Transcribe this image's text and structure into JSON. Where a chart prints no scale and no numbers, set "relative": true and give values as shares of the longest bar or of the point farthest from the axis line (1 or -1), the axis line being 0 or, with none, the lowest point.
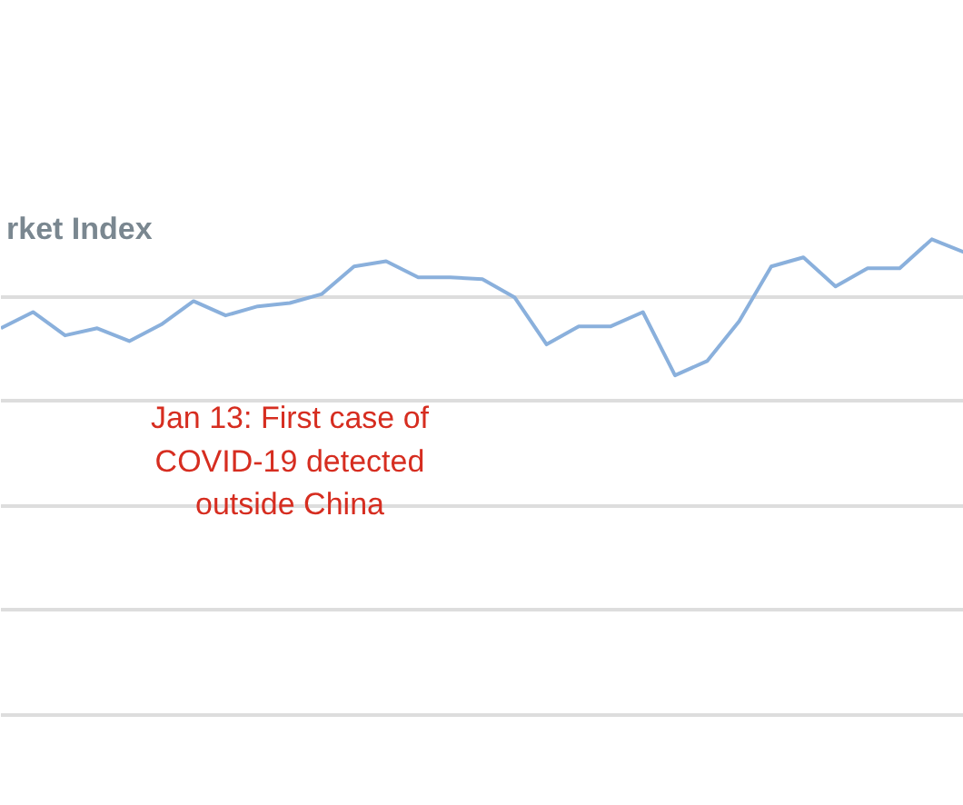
{
  "chart_data": {
    "type": "line",
    "title": "rket Index",
    "relative": true,
    "grid": "y",
    "categories": [
      null,
      null,
      null,
      null,
      null,
      null,
      null,
      null,
      null,
      null,
      null,
      null,
      null,
      null,
      null,
      null,
      null,
      null,
      null,
      null,
      null,
      null,
      null,
      null,
      null,
      null,
      null,
      null,
      null,
      null,
      null
    ],
    "series": [
      {
        "color": "#8ab0dc",
        "values": [
          0.813,
          0.847,
          0.798,
          0.813,
          0.786,
          0.821,
          0.87,
          0.84,
          0.859,
          0.866,
          0.885,
          0.943,
          0.954,
          0.92,
          0.92,
          0.916,
          0.878,
          0.779,
          0.817,
          0.817,
          0.847,
          0.714,
          0.744,
          0.828,
          0.943,
          0.962,
          0.901,
          0.939,
          0.939,
          1,
          0.973
        ]
      }
    ],
    "annotations": [
      "Jan 13: First case of COVID-19 detected outside China"
    ]
  }
}
